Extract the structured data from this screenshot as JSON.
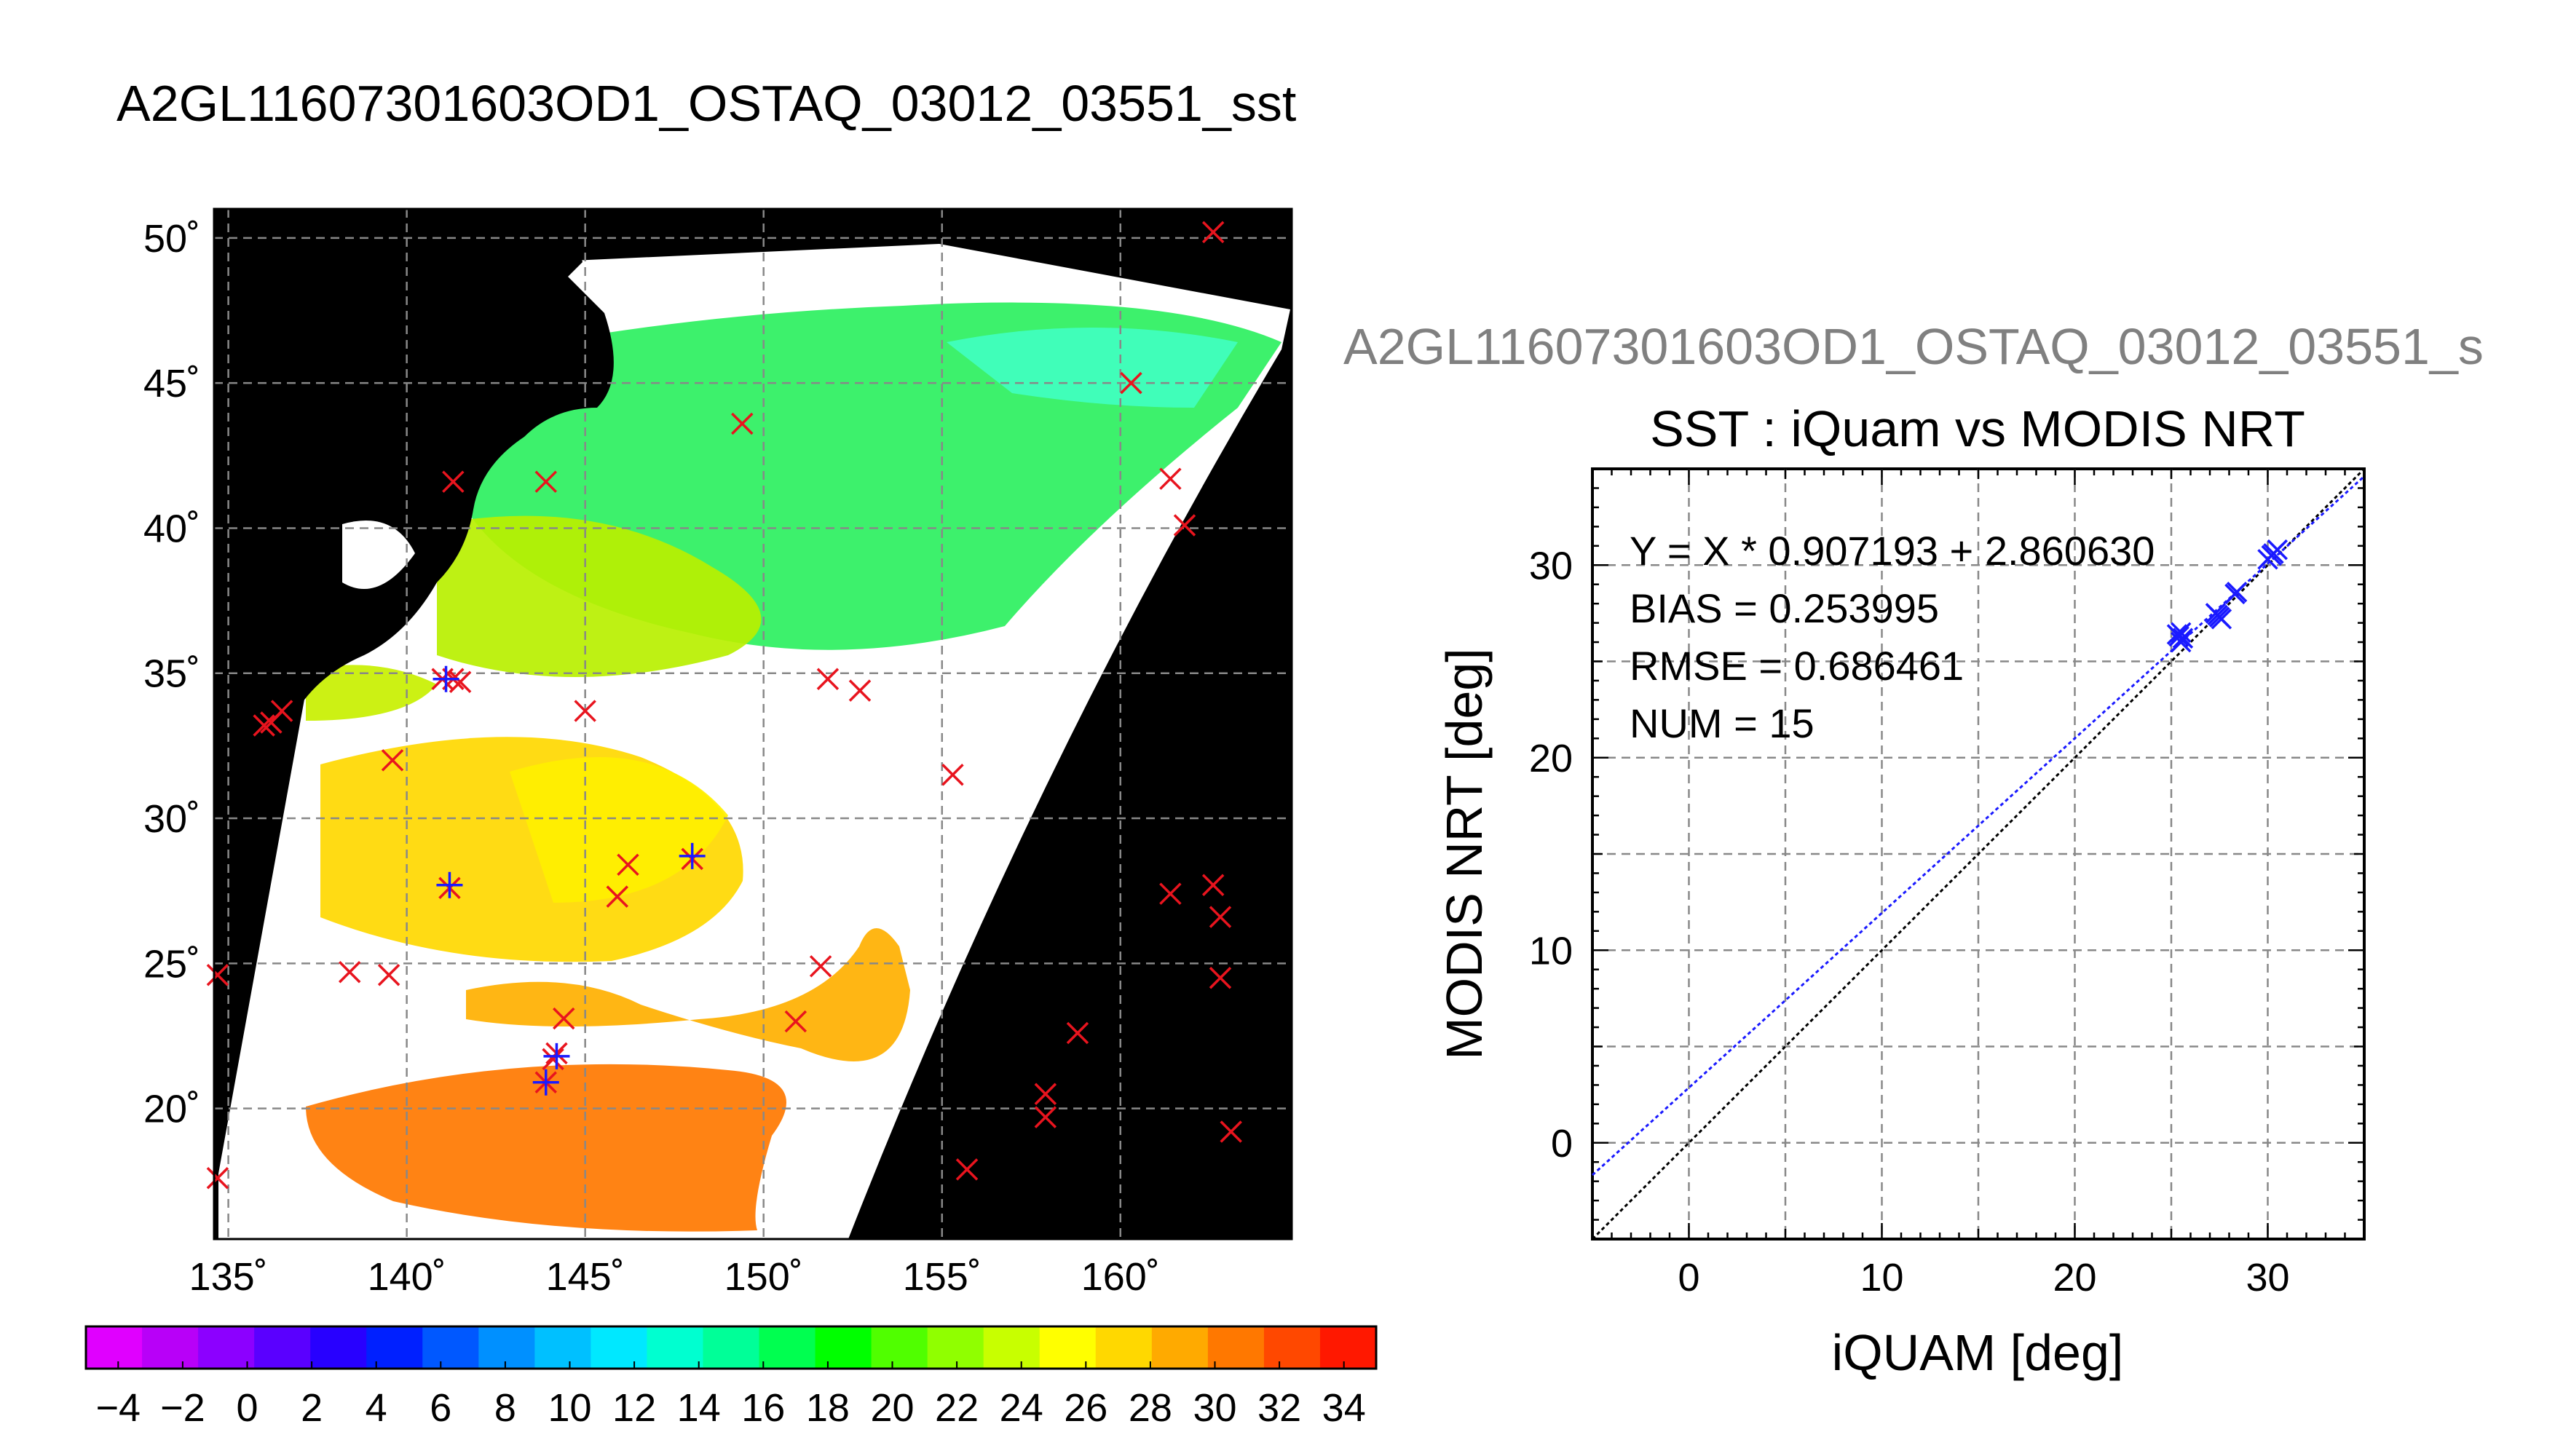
{
  "page": {
    "title": "A2GL11607301603OD1_OSTAQ_03012_03551_sst",
    "subtitle": "A2GL11607301603OD1_OSTAQ_03012_03551_s"
  },
  "colors": {
    "black": "#000000",
    "grid": "#888888",
    "marker_red": "#e8141e",
    "marker_blue": "#1a1aff",
    "fit_line": "#1a1aff",
    "identity_line": "#000000"
  },
  "chart_data": [
    {
      "type": "scatter",
      "name_tag": "sst-map",
      "xlabel": "",
      "ylabel": "",
      "xlim": [
        134.6,
        164.8
      ],
      "ylim": [
        15.5,
        51.0
      ],
      "x_ticks": [
        135,
        140,
        145,
        150,
        155,
        160
      ],
      "x_tick_labels": [
        "135˚",
        "140˚",
        "145˚",
        "150˚",
        "155˚",
        "160˚"
      ],
      "y_ticks": [
        20,
        25,
        30,
        35,
        40,
        45,
        50
      ],
      "y_tick_labels": [
        "20˚",
        "25˚",
        "30˚",
        "35˚",
        "40˚",
        "45˚",
        "50˚"
      ],
      "grid": true,
      "markers_red": [
        {
          "lon": 162.6,
          "lat": 50.2
        },
        {
          "lon": 160.3,
          "lat": 45.0
        },
        {
          "lon": 149.4,
          "lat": 43.6
        },
        {
          "lon": 143.9,
          "lat": 41.6
        },
        {
          "lon": 141.3,
          "lat": 41.6
        },
        {
          "lon": 161.4,
          "lat": 41.7
        },
        {
          "lon": 161.8,
          "lat": 40.1
        },
        {
          "lon": 151.8,
          "lat": 34.8
        },
        {
          "lon": 152.7,
          "lat": 34.4
        },
        {
          "lon": 141.0,
          "lat": 34.8
        },
        {
          "lon": 141.3,
          "lat": 34.8
        },
        {
          "lon": 141.5,
          "lat": 34.7
        },
        {
          "lon": 136.0,
          "lat": 33.2
        },
        {
          "lon": 136.2,
          "lat": 33.3
        },
        {
          "lon": 136.5,
          "lat": 33.7
        },
        {
          "lon": 145.0,
          "lat": 33.7
        },
        {
          "lon": 139.6,
          "lat": 32.0
        },
        {
          "lon": 155.3,
          "lat": 31.5
        },
        {
          "lon": 146.2,
          "lat": 28.4
        },
        {
          "lon": 145.9,
          "lat": 27.3
        },
        {
          "lon": 148.0,
          "lat": 28.6
        },
        {
          "lon": 141.2,
          "lat": 27.6
        },
        {
          "lon": 162.6,
          "lat": 27.7
        },
        {
          "lon": 161.4,
          "lat": 27.4
        },
        {
          "lon": 162.8,
          "lat": 26.6
        },
        {
          "lon": 151.6,
          "lat": 24.9
        },
        {
          "lon": 138.4,
          "lat": 24.7
        },
        {
          "lon": 139.5,
          "lat": 24.6
        },
        {
          "lon": 134.7,
          "lat": 24.6
        },
        {
          "lon": 162.8,
          "lat": 24.5
        },
        {
          "lon": 144.4,
          "lat": 23.1
        },
        {
          "lon": 150.9,
          "lat": 23.0
        },
        {
          "lon": 158.8,
          "lat": 22.6
        },
        {
          "lon": 144.1,
          "lat": 21.7
        },
        {
          "lon": 144.2,
          "lat": 21.9
        },
        {
          "lon": 157.9,
          "lat": 20.5
        },
        {
          "lon": 157.9,
          "lat": 19.7
        },
        {
          "lon": 143.9,
          "lat": 20.9
        },
        {
          "lon": 163.1,
          "lat": 19.2
        },
        {
          "lon": 155.7,
          "lat": 17.9
        },
        {
          "lon": 134.7,
          "lat": 17.6
        }
      ],
      "markers_blue": [
        {
          "lon": 141.2,
          "lat": 27.7
        },
        {
          "lon": 148.0,
          "lat": 28.7
        },
        {
          "lon": 143.9,
          "lat": 20.9
        },
        {
          "lon": 144.2,
          "lat": 21.8
        },
        {
          "lon": 141.1,
          "lat": 34.8
        }
      ]
    },
    {
      "type": "scatter",
      "title": "SST : iQuam vs MODIS NRT",
      "xlabel": "iQUAM [deg]",
      "ylabel": "MODIS NRT [deg]",
      "xlim": [
        -5,
        35
      ],
      "ylim": [
        -5,
        35
      ],
      "x_ticks": [
        0,
        10,
        20,
        30
      ],
      "y_ticks": [
        0,
        10,
        20,
        30
      ],
      "grid": true,
      "stats": [
        "Y = X * 0.907193 + 2.860630",
        "BIAS = 0.253995",
        "RMSE = 0.686461",
        "NUM = 15"
      ],
      "fit": {
        "slope": 0.907193,
        "intercept": 2.86063
      },
      "points": [
        {
          "x": 25.5,
          "y": 26.5
        },
        {
          "x": 25.6,
          "y": 26.2
        },
        {
          "x": 25.4,
          "y": 26.3
        },
        {
          "x": 27.4,
          "y": 27.4
        },
        {
          "x": 27.6,
          "y": 27.2
        },
        {
          "x": 28.3,
          "y": 28.5
        },
        {
          "x": 30.0,
          "y": 30.3
        },
        {
          "x": 30.5,
          "y": 30.8
        },
        {
          "x": 30.3,
          "y": 30.6
        },
        {
          "x": 27.5,
          "y": 27.3
        },
        {
          "x": 25.5,
          "y": 26.0
        },
        {
          "x": 28.4,
          "y": 28.6
        },
        {
          "x": 30.2,
          "y": 30.5
        },
        {
          "x": 25.3,
          "y": 26.4
        },
        {
          "x": 27.3,
          "y": 27.5
        }
      ]
    }
  ],
  "colorbar": {
    "min": -5,
    "max": 35,
    "tick_labels": [
      "−4",
      "−2",
      "0",
      "2",
      "4",
      "6",
      "8",
      "10",
      "12",
      "14",
      "16",
      "18",
      "20",
      "22",
      "24",
      "26",
      "28",
      "30",
      "32",
      "34"
    ],
    "tick_values": [
      -4,
      -2,
      0,
      2,
      4,
      6,
      8,
      10,
      12,
      14,
      16,
      18,
      20,
      22,
      24,
      26,
      28,
      30,
      32,
      34
    ],
    "colors": [
      "#e000ff",
      "#b800f8",
      "#8c00ff",
      "#5a00ff",
      "#2800ff",
      "#0020ff",
      "#0058ff",
      "#0090ff",
      "#00c0ff",
      "#00e8ff",
      "#00ffd0",
      "#00ff98",
      "#00ff50",
      "#00ff00",
      "#50ff00",
      "#90ff00",
      "#c8ff00",
      "#ffff00",
      "#ffd800",
      "#ffaa00",
      "#ff7800",
      "#ff4800",
      "#ff1800"
    ]
  }
}
